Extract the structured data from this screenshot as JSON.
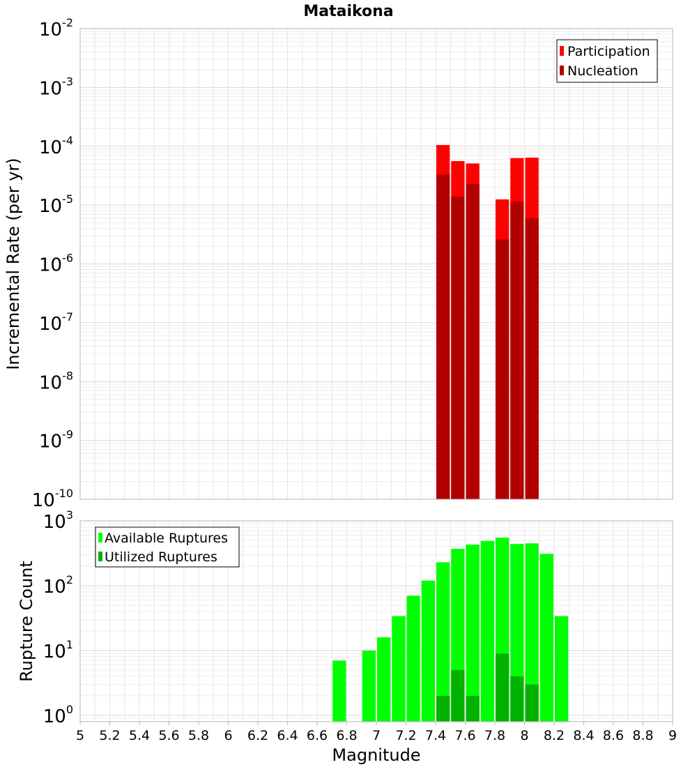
{
  "title": "Mataikona",
  "colors": {
    "participation": "#ff0000",
    "nucleation": "#b20000",
    "available": "#00ff00",
    "utilized": "#00b200",
    "grid": "#e6e6e6",
    "axis": "#b4b4b4"
  },
  "chart_data": [
    {
      "type": "bar",
      "panel": "rates",
      "ylabel": "Incremental Rate (per yr)",
      "yscale": "log",
      "ylim": [
        1e-10,
        0.01
      ],
      "xlim": [
        5,
        9
      ],
      "y_ticks": [
        {
          "value": 1e-10,
          "base": "10",
          "exp": "-10"
        },
        {
          "value": 1e-09,
          "base": "10",
          "exp": "-9"
        },
        {
          "value": 1e-08,
          "base": "10",
          "exp": "-8"
        },
        {
          "value": 1e-07,
          "base": "10",
          "exp": "-7"
        },
        {
          "value": 1e-06,
          "base": "10",
          "exp": "-6"
        },
        {
          "value": 1e-05,
          "base": "10",
          "exp": "-5"
        },
        {
          "value": 0.0001,
          "base": "10",
          "exp": "-4"
        },
        {
          "value": 0.001,
          "base": "10",
          "exp": "-3"
        },
        {
          "value": 0.01,
          "base": "10",
          "exp": "-2"
        }
      ],
      "legend": {
        "position": "top-right",
        "entries": [
          "Participation",
          "Nucleation"
        ]
      },
      "bin_width": 0.1,
      "x": [
        7.45,
        7.55,
        7.65,
        7.85,
        7.95,
        8.05
      ],
      "series": [
        {
          "name": "Participation",
          "color": "#ff0000",
          "values": [
            0.000105,
            5.6e-05,
            5.1e-05,
            1.25e-05,
            6.3e-05,
            6.4e-05
          ]
        },
        {
          "name": "Nucleation",
          "color": "#b20000",
          "values": [
            3.3e-05,
            1.4e-05,
            2.3e-05,
            2.6e-06,
            1.15e-05,
            6e-06
          ]
        }
      ]
    },
    {
      "type": "bar",
      "panel": "counts",
      "ylabel": "Rupture Count",
      "xlabel": "Magnitude",
      "yscale": "log",
      "ylim": [
        0.8,
        1000
      ],
      "xlim": [
        5,
        9
      ],
      "x_ticks": [
        "5",
        "5.2",
        "5.4",
        "5.6",
        "5.8",
        "6",
        "6.2",
        "6.4",
        "6.6",
        "6.8",
        "7",
        "7.2",
        "7.4",
        "7.6",
        "7.8",
        "8",
        "8.2",
        "8.4",
        "8.6",
        "8.8",
        "9"
      ],
      "y_ticks": [
        {
          "value": 1,
          "base": "10",
          "exp": "0"
        },
        {
          "value": 10,
          "base": "10",
          "exp": "1"
        },
        {
          "value": 100,
          "base": "10",
          "exp": "2"
        },
        {
          "value": 1000,
          "base": "10",
          "exp": "3"
        }
      ],
      "legend": {
        "position": "top-left",
        "entries": [
          "Available Ruptures",
          "Utilized Ruptures"
        ]
      },
      "bin_width": 0.1,
      "series": [
        {
          "name": "Available Ruptures",
          "color": "#00ff00",
          "x": [
            6.75,
            6.95,
            7.05,
            7.15,
            7.25,
            7.35,
            7.45,
            7.55,
            7.65,
            7.75,
            7.85,
            7.95,
            8.05,
            8.15,
            8.25
          ],
          "values": [
            7,
            10,
            16,
            34,
            70,
            120,
            230,
            370,
            430,
            490,
            550,
            440,
            450,
            310,
            34
          ]
        },
        {
          "name": "Utilized Ruptures",
          "color": "#00b200",
          "x": [
            7.45,
            7.55,
            7.65,
            7.85,
            7.95,
            8.05
          ],
          "values": [
            2,
            5,
            2,
            9,
            4,
            3
          ]
        }
      ]
    }
  ]
}
